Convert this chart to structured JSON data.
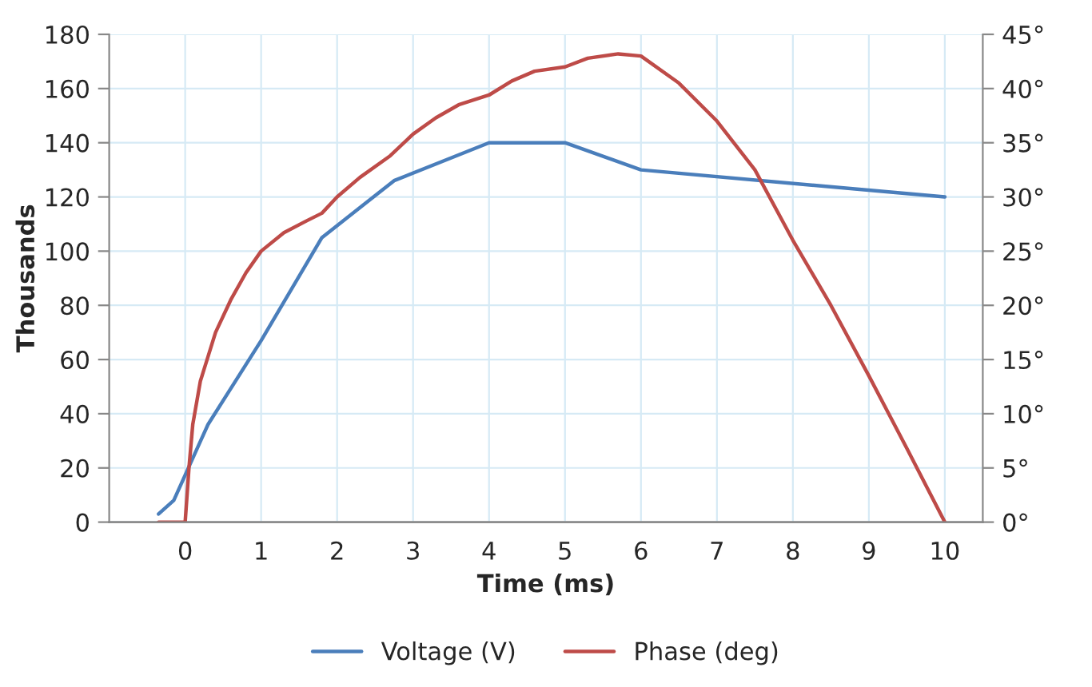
{
  "chart_data": {
    "type": "line",
    "xlabel": "Time (ms)",
    "ylabel": "Thousands",
    "xlim": [
      -1,
      10.5
    ],
    "xticks": [
      0,
      1,
      2,
      3,
      4,
      5,
      6,
      7,
      8,
      9,
      10
    ],
    "ylim": [
      0,
      180
    ],
    "yticks": [
      0,
      20,
      40,
      60,
      80,
      100,
      120,
      140,
      160,
      180
    ],
    "y2lim": [
      0,
      45
    ],
    "y2ticks": [
      {
        "value": 0,
        "label": "0°"
      },
      {
        "value": 5,
        "label": "5°"
      },
      {
        "value": 10,
        "label": "10°"
      },
      {
        "value": 15,
        "label": "15°"
      },
      {
        "value": 20,
        "label": "20°"
      },
      {
        "value": 25,
        "label": "25°"
      },
      {
        "value": 30,
        "label": "30°"
      },
      {
        "value": 35,
        "label": "35°"
      },
      {
        "value": 40,
        "label": "40°"
      },
      {
        "value": 45,
        "label": "45°"
      }
    ],
    "grid": true,
    "legend": "bottom",
    "marker": "none",
    "line_style": "solid",
    "series": [
      {
        "name": "Voltage (V)",
        "color": "#4a7ebb",
        "x": [
          -0.35,
          -0.15,
          0.3,
          1,
          1.8,
          2.75,
          4,
          5,
          6,
          10
        ],
        "values": [
          3,
          8,
          36,
          67,
          105,
          126,
          140,
          140,
          130,
          120
        ]
      },
      {
        "name": "Phase (deg)",
        "color": "#be4b48",
        "axis": "y2",
        "x": [
          -0.35,
          0,
          0.05,
          0.1,
          0.2,
          0.4,
          0.6,
          0.8,
          1,
          1.3,
          1.6,
          1.8,
          2,
          2.3,
          2.7,
          3,
          3.3,
          3.6,
          4,
          4.3,
          4.6,
          5,
          5.3,
          5.7,
          6,
          6.5,
          7,
          7.5,
          8,
          8.5,
          9,
          9.5,
          10
        ],
        "values": [
          0,
          0,
          5,
          9,
          13,
          17.5,
          20.5,
          23,
          25,
          26.7,
          27.8,
          28.5,
          30,
          31.8,
          33.8,
          35.8,
          37.3,
          38.5,
          39.4,
          40.7,
          41.6,
          42,
          42.8,
          43.2,
          43,
          40.5,
          37,
          32.5,
          26,
          20,
          13.5,
          6.8,
          0
        ]
      }
    ]
  }
}
